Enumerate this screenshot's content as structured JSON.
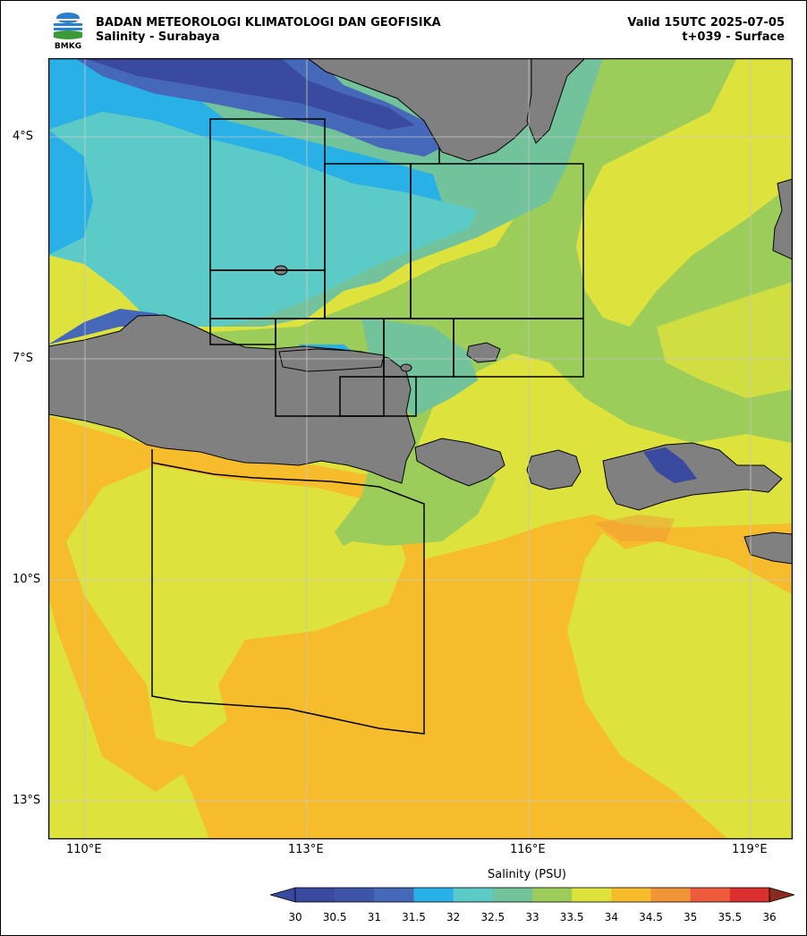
{
  "header": {
    "org": "BADAN METEOROLOGI KLIMATOLOGI DAN GEOFISIKA",
    "subtitle": "Salinity - Surabaya",
    "valid": "Valid 15UTC 2025-07-05",
    "step": "t+039 - Surface",
    "logo_text": "BMKG"
  },
  "map": {
    "lat_labels": [
      "4°S",
      "7°S",
      "10°S",
      "13°S"
    ],
    "lon_labels": [
      "110°E",
      "113°E",
      "116°E",
      "119°E"
    ],
    "colors": {
      "land": "#808080",
      "s30_5": "#3a4a9e",
      "s31": "#4568b8",
      "s31_5": "#29b0e6",
      "s32": "#5ccbc8",
      "s32_5": "#72c29c",
      "s33": "#9ccc5a",
      "s33_5": "#dde23c",
      "s34": "#f7bc2c",
      "s34_5": "#f29538"
    }
  },
  "colorbar": {
    "title": "Salinity (PSU)",
    "ticks": [
      "30",
      "30.5",
      "31",
      "31.5",
      "32",
      "32.5",
      "33",
      "33.5",
      "34",
      "34.5",
      "35",
      "35.5",
      "36"
    ],
    "colors": [
      "#3a4a9e",
      "#3e55a8",
      "#4568b8",
      "#29b0e6",
      "#5ccbc8",
      "#72c29c",
      "#9ccc5a",
      "#dde23c",
      "#f7bc2c",
      "#f29538",
      "#ee5a3c",
      "#dc2f2f",
      "#8b2a1e"
    ]
  }
}
